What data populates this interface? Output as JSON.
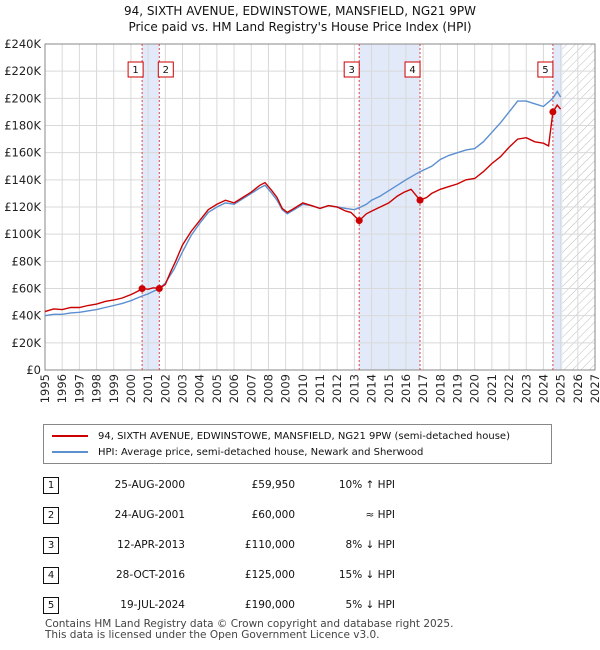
{
  "chart_data": {
    "type": "line",
    "title": "94, SIXTH AVENUE, EDWINSTOWE, MANSFIELD, NG21 9PW",
    "subtitle": "Price paid vs. HM Land Registry's House Price Index (HPI)",
    "xlim": [
      1995,
      2027
    ],
    "ylim": [
      0,
      240000
    ],
    "x_ticks": [
      "1995",
      "1996",
      "1997",
      "1998",
      "1999",
      "2000",
      "2001",
      "2002",
      "2003",
      "2004",
      "2005",
      "2006",
      "2007",
      "2008",
      "2009",
      "2010",
      "2011",
      "2012",
      "2013",
      "2014",
      "2015",
      "2016",
      "2017",
      "2018",
      "2019",
      "2020",
      "2021",
      "2022",
      "2023",
      "2024",
      "2025",
      "2026",
      "2027"
    ],
    "y_ticks": [
      "£0",
      "£20K",
      "£40K",
      "£60K",
      "£80K",
      "£100K",
      "£120K",
      "£140K",
      "£160K",
      "£180K",
      "£200K",
      "£220K",
      "£240K"
    ],
    "grid": true,
    "data_end": 2025.1,
    "series": [
      {
        "name": "94, SIXTH AVENUE, EDWINSTOWE, MANSFIELD, NG21 9PW (semi-detached house)",
        "color": "#cc0000",
        "points": [
          [
            1995.0,
            43000
          ],
          [
            1995.5,
            45000
          ],
          [
            1996.0,
            44500
          ],
          [
            1996.5,
            46000
          ],
          [
            1997.0,
            46000
          ],
          [
            1997.5,
            47500
          ],
          [
            1998.0,
            48500
          ],
          [
            1998.5,
            50500
          ],
          [
            1999.0,
            51500
          ],
          [
            1999.5,
            53000
          ],
          [
            2000.0,
            55500
          ],
          [
            2000.4,
            58000
          ],
          [
            2000.65,
            59950
          ],
          [
            2001.0,
            59500
          ],
          [
            2001.3,
            60500
          ],
          [
            2001.65,
            60000
          ],
          [
            2002.0,
            63000
          ],
          [
            2002.3,
            72000
          ],
          [
            2002.6,
            80000
          ],
          [
            2003.0,
            92000
          ],
          [
            2003.5,
            102000
          ],
          [
            2004.0,
            110000
          ],
          [
            2004.5,
            118000
          ],
          [
            2005.0,
            122000
          ],
          [
            2005.5,
            125000
          ],
          [
            2006.0,
            123000
          ],
          [
            2006.5,
            127000
          ],
          [
            2007.0,
            131000
          ],
          [
            2007.5,
            136000
          ],
          [
            2007.8,
            138000
          ],
          [
            2008.2,
            132000
          ],
          [
            2008.5,
            127000
          ],
          [
            2008.8,
            119000
          ],
          [
            2009.1,
            116000
          ],
          [
            2009.5,
            119000
          ],
          [
            2010.0,
            123000
          ],
          [
            2010.5,
            121000
          ],
          [
            2011.0,
            119000
          ],
          [
            2011.5,
            121000
          ],
          [
            2012.0,
            120000
          ],
          [
            2012.5,
            117000
          ],
          [
            2012.8,
            116000
          ],
          [
            2013.28,
            110000
          ],
          [
            2013.7,
            115000
          ],
          [
            2014.0,
            117000
          ],
          [
            2014.5,
            120000
          ],
          [
            2015.0,
            123000
          ],
          [
            2015.5,
            128000
          ],
          [
            2015.9,
            131000
          ],
          [
            2016.3,
            133000
          ],
          [
            2016.82,
            125000
          ],
          [
            2017.2,
            127000
          ],
          [
            2017.5,
            130000
          ],
          [
            2018.0,
            133000
          ],
          [
            2018.5,
            135000
          ],
          [
            2019.0,
            137000
          ],
          [
            2019.5,
            140000
          ],
          [
            2020.0,
            141000
          ],
          [
            2020.5,
            146000
          ],
          [
            2021.0,
            152000
          ],
          [
            2021.5,
            157000
          ],
          [
            2022.0,
            164000
          ],
          [
            2022.5,
            170000
          ],
          [
            2023.0,
            171000
          ],
          [
            2023.5,
            168000
          ],
          [
            2024.0,
            167000
          ],
          [
            2024.3,
            165000
          ],
          [
            2024.55,
            190000
          ],
          [
            2024.8,
            195000
          ],
          [
            2025.0,
            192000
          ]
        ]
      },
      {
        "name": "HPI: Average price, semi-detached house, Newark and Sherwood",
        "color": "#5b8fd0",
        "points": [
          [
            1995.0,
            40000
          ],
          [
            1995.5,
            41000
          ],
          [
            1996.0,
            41000
          ],
          [
            1996.5,
            42000
          ],
          [
            1997.0,
            42500
          ],
          [
            1997.5,
            43500
          ],
          [
            1998.0,
            44500
          ],
          [
            1998.5,
            46000
          ],
          [
            1999.0,
            47500
          ],
          [
            1999.5,
            49000
          ],
          [
            2000.0,
            51000
          ],
          [
            2000.65,
            54500
          ],
          [
            2001.0,
            56000
          ],
          [
            2001.65,
            60000
          ],
          [
            2002.0,
            64000
          ],
          [
            2002.5,
            74000
          ],
          [
            2003.0,
            87000
          ],
          [
            2003.5,
            99000
          ],
          [
            2004.0,
            108000
          ],
          [
            2004.5,
            116000
          ],
          [
            2005.0,
            120000
          ],
          [
            2005.5,
            123000
          ],
          [
            2006.0,
            122000
          ],
          [
            2006.5,
            126000
          ],
          [
            2007.0,
            130000
          ],
          [
            2007.5,
            134000
          ],
          [
            2007.8,
            136000
          ],
          [
            2008.2,
            130000
          ],
          [
            2008.5,
            125000
          ],
          [
            2008.8,
            118000
          ],
          [
            2009.1,
            115000
          ],
          [
            2009.5,
            118000
          ],
          [
            2010.0,
            122000
          ],
          [
            2010.5,
            121000
          ],
          [
            2011.0,
            119000
          ],
          [
            2011.5,
            121000
          ],
          [
            2012.0,
            120000
          ],
          [
            2012.5,
            119000
          ],
          [
            2013.0,
            118000
          ],
          [
            2013.28,
            119500
          ],
          [
            2013.7,
            122000
          ],
          [
            2014.0,
            125000
          ],
          [
            2014.5,
            128000
          ],
          [
            2015.0,
            132000
          ],
          [
            2015.5,
            136000
          ],
          [
            2016.0,
            140000
          ],
          [
            2016.82,
            146000
          ],
          [
            2017.5,
            150000
          ],
          [
            2018.0,
            155000
          ],
          [
            2018.5,
            158000
          ],
          [
            2019.0,
            160000
          ],
          [
            2019.5,
            162000
          ],
          [
            2020.0,
            163000
          ],
          [
            2020.5,
            168000
          ],
          [
            2021.0,
            175000
          ],
          [
            2021.5,
            182000
          ],
          [
            2022.0,
            190000
          ],
          [
            2022.5,
            198000
          ],
          [
            2023.0,
            198000
          ],
          [
            2023.5,
            196000
          ],
          [
            2024.0,
            194000
          ],
          [
            2024.55,
            200000
          ],
          [
            2024.8,
            205000
          ],
          [
            2025.0,
            201000
          ]
        ]
      }
    ],
    "sales": [
      {
        "label": "1",
        "x": 2000.65,
        "price": 59950
      },
      {
        "label": "2",
        "x": 2001.65,
        "price": 60000
      },
      {
        "label": "3",
        "x": 2013.28,
        "price": 110000
      },
      {
        "label": "4",
        "x": 2016.82,
        "price": 125000
      },
      {
        "label": "5",
        "x": 2024.55,
        "price": 190000
      }
    ],
    "highlight_ranges": [
      [
        2000.65,
        2001.65
      ],
      [
        2013.28,
        2016.82
      ],
      [
        2024.55,
        2025.1
      ]
    ]
  },
  "legend": {
    "property_label": "94, SIXTH AVENUE, EDWINSTOWE, MANSFIELD, NG21 9PW (semi-detached house)",
    "hpi_label": "HPI: Average price, semi-detached house, Newark and Sherwood"
  },
  "sales_table": [
    {
      "num": "1",
      "date": "25-AUG-2000",
      "price": "£59,950",
      "hpi": "10% ↑ HPI"
    },
    {
      "num": "2",
      "date": "24-AUG-2001",
      "price": "£60,000",
      "hpi": "≈ HPI"
    },
    {
      "num": "3",
      "date": "12-APR-2013",
      "price": "£110,000",
      "hpi": "8% ↓ HPI"
    },
    {
      "num": "4",
      "date": "28-OCT-2016",
      "price": "£125,000",
      "hpi": "15% ↓ HPI"
    },
    {
      "num": "5",
      "date": "19-JUL-2024",
      "price": "£190,000",
      "hpi": "5% ↓ HPI"
    }
  ],
  "footer": {
    "line1": "Contains HM Land Registry data © Crown copyright and database right 2025.",
    "line2": "This data is licensed under the Open Government Licence v3.0."
  }
}
